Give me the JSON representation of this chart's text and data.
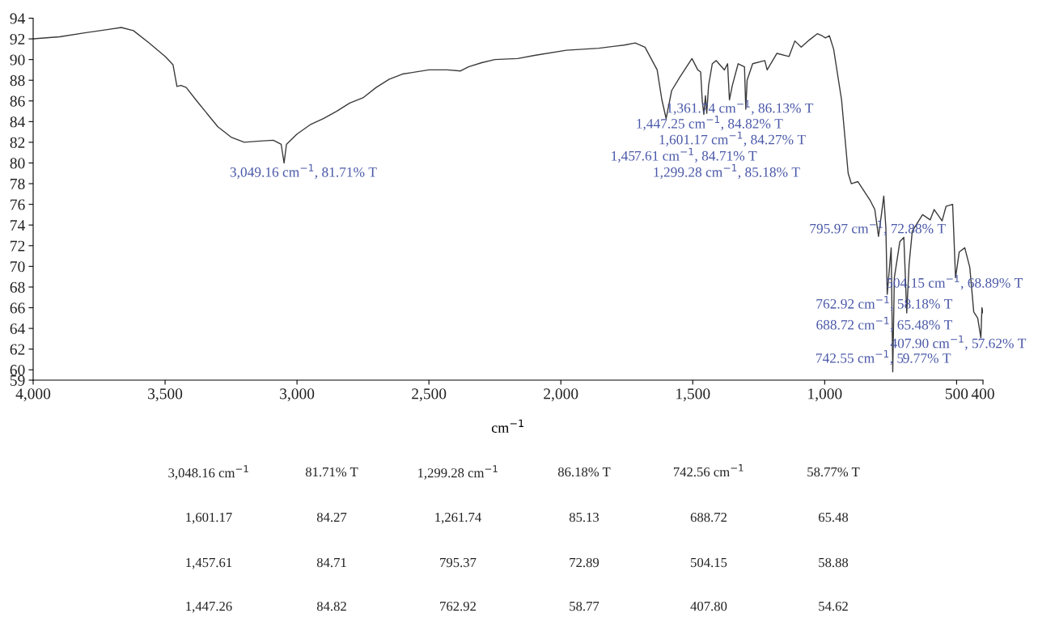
{
  "chart_data": {
    "type": "line",
    "xlabel": "cm$^{−1}$",
    "xlim": [
      4000,
      400
    ],
    "ylim": [
      59,
      94
    ],
    "xticks": [
      {
        "value": 4000,
        "label": "4,000"
      },
      {
        "value": 3500,
        "label": "3,500"
      },
      {
        "value": 3000,
        "label": "3,000"
      },
      {
        "value": 2500,
        "label": "2,500"
      },
      {
        "value": 2000,
        "label": "2,000"
      },
      {
        "value": 1500,
        "label": "1,500"
      },
      {
        "value": 1000,
        "label": "1,000"
      },
      500,
      400
    ],
    "yticks": [
      59,
      60,
      62,
      64,
      66,
      68,
      70,
      72,
      74,
      76,
      78,
      80,
      82,
      84,
      86,
      88,
      90,
      92,
      94
    ],
    "series": [
      {
        "color": "#3a3a3a",
        "x": [
          4000,
          3900,
          3800,
          3720,
          3666,
          3620,
          3560,
          3500,
          3470,
          3455,
          3440,
          3420,
          3380,
          3300,
          3250,
          3200,
          3150,
          3090,
          3060,
          3049,
          3040,
          3000,
          2950,
          2900,
          2850,
          2800,
          2750,
          2700,
          2650,
          2600,
          2500,
          2430,
          2380,
          2350,
          2300,
          2250,
          2163,
          2100,
          1979,
          1856,
          1760,
          1718,
          1681,
          1635,
          1617,
          1601,
          1580,
          1549,
          1503,
          1481,
          1470,
          1464,
          1458,
          1452,
          1447,
          1440,
          1426,
          1411,
          1380,
          1368,
          1361,
          1350,
          1328,
          1304,
          1299,
          1294,
          1273,
          1227,
          1218,
          1181,
          1135,
          1113,
          1089,
          1058,
          1028,
          1010,
          997,
          982,
          966,
          936,
          911,
          899,
          874,
          828,
          810,
          796,
          785,
          776,
          768,
          763,
          748,
          742,
          736,
          715,
          700,
          689,
          680,
          668,
          629,
          600,
          585,
          555,
          540,
          515,
          504,
          490,
          469,
          450,
          435,
          420,
          408,
          404,
          400
        ],
        "values": [
          92.0,
          92.2,
          92.6,
          92.9,
          93.1,
          92.8,
          91.6,
          90.3,
          89.5,
          87.4,
          87.5,
          87.3,
          86.0,
          83.5,
          82.5,
          82.0,
          82.1,
          82.2,
          81.8,
          80.0,
          81.8,
          82.8,
          83.7,
          84.3,
          85.0,
          85.8,
          86.3,
          87.3,
          88.1,
          88.6,
          89.0,
          89.0,
          88.9,
          89.3,
          89.7,
          90.0,
          90.1,
          90.4,
          90.9,
          91.1,
          91.4,
          91.6,
          91.2,
          89.0,
          86.1,
          84.3,
          87.0,
          88.3,
          90.1,
          89.0,
          88.8,
          86.0,
          84.7,
          86.5,
          84.8,
          87.5,
          89.6,
          89.9,
          89.0,
          89.6,
          86.1,
          87.5,
          89.6,
          89.3,
          85.2,
          88.0,
          89.6,
          89.9,
          89.0,
          90.6,
          90.3,
          91.8,
          91.2,
          91.9,
          92.5,
          92.3,
          92.1,
          92.3,
          91.0,
          86.1,
          79.0,
          78.0,
          78.2,
          76.4,
          75.5,
          72.9,
          75.0,
          76.8,
          73.7,
          67.3,
          71.8,
          59.8,
          68.9,
          72.4,
          72.8,
          65.5,
          70.2,
          73.4,
          75.0,
          74.5,
          75.5,
          74.4,
          75.8,
          76.0,
          68.9,
          71.4,
          71.8,
          69.9,
          65.6,
          65.0,
          63.1,
          66.0,
          65.5
        ]
      }
    ],
    "annotations": [
      "3,049.16 cm$^{−1}$, 81.71% T",
      "1,361.74 cm$^{−1}$, 86.13% T",
      "1,447.25 cm$^{−1}$, 84.82% T",
      "1,601.17 cm$^{−1}$, 84.27% T",
      "1,457.61 cm$^{−1}$, 84.71% T",
      "1,299.28 cm$^{−1}$, 85.18% T",
      "795.97 cm$^{−1}$, 72.88% T",
      "504.15 cm$^{−1}$, 68.89% T",
      "762.92 cm$^{−1}$, 58.18% T",
      "688.72 cm$^{−1}$, 65.48% T",
      "407.90 cm$^{−1}$, 57.62% T",
      "742.55 cm$^{−1}$, 59.77% T",
      "3,048.16 cm$^{−1}$",
      "81.71% T",
      "1,299.28 cm$^{−1}$",
      "86.18% T",
      "742.56 cm$^{−1}$",
      "58.77% T",
      "1,601.17",
      "84.27",
      "1,261.74",
      "85.13",
      "688.72",
      "65.48",
      "1,457.61",
      "84.71",
      "795.37",
      "72.89",
      "504.15",
      "58.88",
      "1,447.26",
      "84.82",
      "762.92",
      "58.77",
      "407.80",
      "54.62"
    ]
  }
}
